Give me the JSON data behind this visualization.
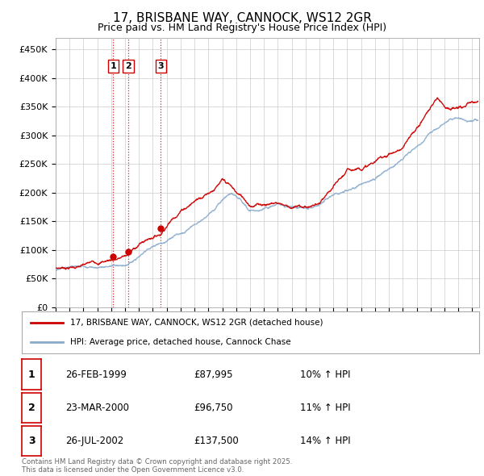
{
  "title": "17, BRISBANE WAY, CANNOCK, WS12 2GR",
  "subtitle": "Price paid vs. HM Land Registry's House Price Index (HPI)",
  "ylabel_ticks": [
    "£0",
    "£50K",
    "£100K",
    "£150K",
    "£200K",
    "£250K",
    "£300K",
    "£350K",
    "£400K",
    "£450K"
  ],
  "ytick_values": [
    0,
    50000,
    100000,
    150000,
    200000,
    250000,
    300000,
    350000,
    400000,
    450000
  ],
  "ylim": [
    0,
    470000
  ],
  "xlim_start": 1995.0,
  "xlim_end": 2025.5,
  "purchase_dates": [
    1999.15,
    2000.23,
    2002.57
  ],
  "purchase_prices": [
    87995,
    96750,
    137500
  ],
  "purchase_labels": [
    "1",
    "2",
    "3"
  ],
  "vline_color": "#cc0000",
  "red_line_color": "#cc0000",
  "blue_line_color": "#88aacc",
  "legend_entries": [
    "17, BRISBANE WAY, CANNOCK, WS12 2GR (detached house)",
    "HPI: Average price, detached house, Cannock Chase"
  ],
  "table_rows": [
    [
      "1",
      "26-FEB-1999",
      "£87,995",
      "10% ↑ HPI"
    ],
    [
      "2",
      "23-MAR-2000",
      "£96,750",
      "11% ↑ HPI"
    ],
    [
      "3",
      "26-JUL-2002",
      "£137,500",
      "14% ↑ HPI"
    ]
  ],
  "footnote": "Contains HM Land Registry data © Crown copyright and database right 2025.\nThis data is licensed under the Open Government Licence v3.0.",
  "background_color": "#ffffff",
  "grid_color": "#cccccc",
  "title_fontsize": 11,
  "subtitle_fontsize": 9,
  "tick_fontsize": 8
}
